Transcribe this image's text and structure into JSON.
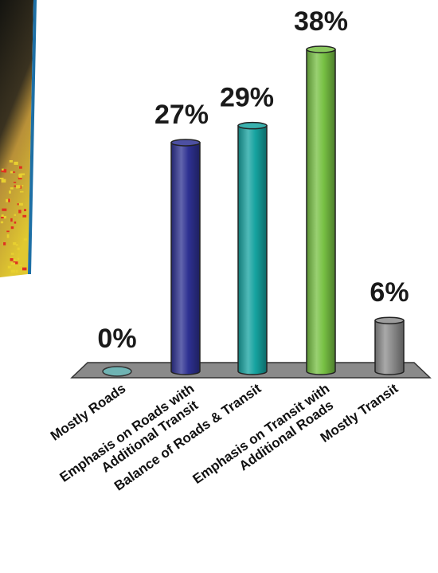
{
  "chart_data": {
    "type": "bar",
    "style": "3d-cylinder",
    "title": "",
    "xlabel": "",
    "ylabel": "",
    "ylim": [
      0,
      38
    ],
    "grid": false,
    "legend": "none",
    "categories": [
      [
        "Mostly Roads"
      ],
      [
        "Emphasis on Roads with",
        "Additional Transit"
      ],
      [
        "Balance of Roads & Transit"
      ],
      [
        "Emphasis on Transit with",
        "Additional Roads"
      ],
      [
        "Mostly Transit"
      ]
    ],
    "values": [
      0,
      27,
      29,
      38,
      6
    ],
    "value_labels": [
      "0%",
      "27%",
      "29%",
      "38%",
      "6%"
    ],
    "colors": [
      "#6fb3b3",
      "#2e3192",
      "#16a3a0",
      "#77c043",
      "#8c8c8c"
    ]
  },
  "background_photo": {
    "icon": "photo-thumbnail-icon",
    "colors": [
      "#1a1a14",
      "#c8a040",
      "#e8d030",
      "#e03020"
    ]
  },
  "floor_color": "#8a8a8a"
}
